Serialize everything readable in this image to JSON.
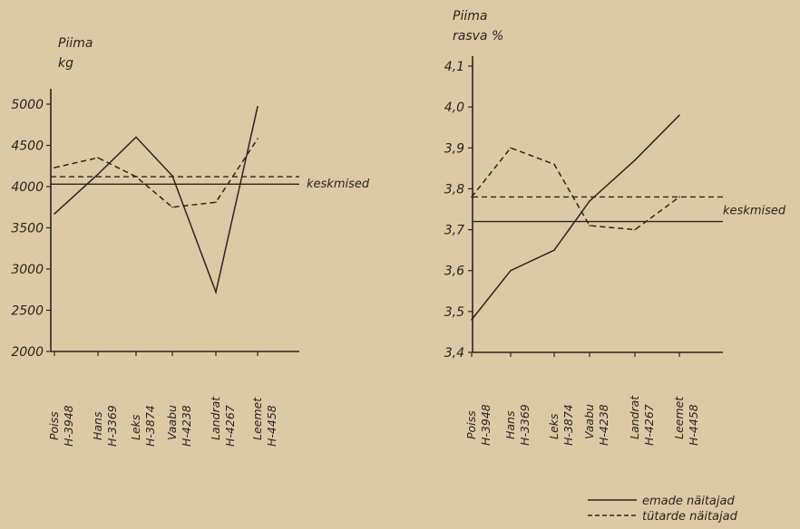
{
  "chart_data": [
    {
      "type": "line",
      "ylabel": [
        "Piima",
        "kg"
      ],
      "ylim": [
        2000,
        5000
      ],
      "yticks": [
        2000,
        2500,
        3000,
        3500,
        4000,
        4500,
        5000
      ],
      "categories": [
        [
          "Poiss",
          "H-3948"
        ],
        [
          "Hans",
          "H-3369"
        ],
        [
          "Leks",
          "H-3874"
        ],
        [
          "Vaabu",
          "H-4238"
        ],
        [
          "Landrat",
          "H-4267"
        ],
        [
          "Leemet",
          "H-4458"
        ]
      ],
      "series": [
        {
          "name": "emade näitajad",
          "style": "solid",
          "values": [
            3670,
            4150,
            4600,
            4130,
            2720,
            4970
          ]
        },
        {
          "name": "tütarde näitajad",
          "style": "dashed",
          "values": [
            4230,
            4350,
            4120,
            3750,
            3810,
            4580
          ]
        }
      ],
      "averages": [
        {
          "label": "keskmised",
          "style": "solid",
          "value": 4030
        },
        {
          "style": "dashed",
          "value": 4120
        }
      ]
    },
    {
      "type": "line",
      "ylabel": [
        "Piima",
        "rasva %"
      ],
      "ylim": [
        3.4,
        4.1
      ],
      "yticks": [
        "3,4",
        "3,5",
        "3,6",
        "3,7",
        "3,8",
        "3,9",
        "4,0",
        "4,1"
      ],
      "categories": [
        [
          "Poiss",
          "H-3948"
        ],
        [
          "Hans",
          "H-3369"
        ],
        [
          "Leks",
          "H-3874"
        ],
        [
          "Vaabu",
          "H-4238"
        ],
        [
          "Landrat",
          "H-4267"
        ],
        [
          "Leemet",
          "H-4458"
        ]
      ],
      "series": [
        {
          "name": "emade näitajad",
          "style": "solid",
          "values": [
            3.48,
            3.6,
            3.65,
            3.77,
            3.87,
            3.98
          ]
        },
        {
          "name": "tütarde näitajad",
          "style": "dashed",
          "values": [
            3.78,
            3.9,
            3.86,
            3.71,
            3.7,
            3.78
          ]
        }
      ],
      "averages": [
        {
          "label": "keskmised",
          "style": "solid",
          "value": 3.72
        },
        {
          "style": "dashed",
          "value": 3.78
        }
      ]
    }
  ],
  "legend": [
    {
      "style": "solid",
      "label": "emade näitajad"
    },
    {
      "style": "dashed",
      "label": "tütarde näitajad"
    }
  ]
}
